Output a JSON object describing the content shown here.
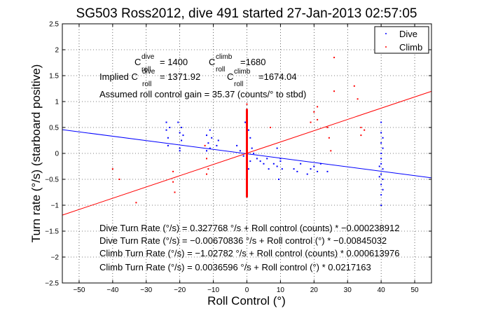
{
  "chart_data": {
    "type": "scatter",
    "title": "SG503 Ross2012, dive 491 started 27-Jan-2013 02:57:05",
    "xlabel": "Roll Control (°)",
    "ylabel": "Turn rate (°/s) (starboard positive)",
    "xlim": [
      -55,
      55
    ],
    "ylim": [
      -2.5,
      2.5
    ],
    "xticks": [
      -50,
      -40,
      -30,
      -20,
      -10,
      0,
      10,
      20,
      30,
      40,
      50
    ],
    "yticks": [
      -2.5,
      -2,
      -1.5,
      -1,
      -0.5,
      0,
      0.5,
      1,
      1.5,
      2,
      2.5
    ],
    "xtick_labels": [
      "−50",
      "−40",
      "−30",
      "−20",
      "−10",
      "0",
      "10",
      "20",
      "30",
      "40",
      "50"
    ],
    "ytick_labels": [
      "−2.5",
      "−2",
      "−1.5",
      "−1",
      "−0.5",
      "0",
      "0.5",
      "1",
      "1.5",
      "2",
      "2.5"
    ],
    "grid": true,
    "legend_position": "top-right",
    "series": [
      {
        "name": "Dive",
        "color": "#0000ff",
        "marker": "dot",
        "points": [
          [
            -24,
            0.6
          ],
          [
            -24,
            0.45
          ],
          [
            -23.5,
            0.3
          ],
          [
            -23,
            0.5
          ],
          [
            -23.5,
            0.15
          ],
          [
            -20.5,
            0.6
          ],
          [
            -20,
            0.4
          ],
          [
            -19.5,
            0.25
          ],
          [
            -20,
            0.1
          ],
          [
            -19.5,
            0.5
          ],
          [
            -20,
            0.05
          ],
          [
            -19,
            0.35
          ],
          [
            -12,
            0.35
          ],
          [
            -11.5,
            0.2
          ],
          [
            -11,
            0.1
          ],
          [
            -12,
            0.05
          ],
          [
            -10.5,
            0.3
          ],
          [
            -11,
            0.45
          ],
          [
            -9,
            0.15
          ],
          [
            -8.5,
            0.25
          ],
          [
            -3,
            0.15
          ],
          [
            -2,
            0.05
          ],
          [
            -1,
            -0.05
          ],
          [
            -0.5,
            0.6
          ],
          [
            0,
            0.85
          ],
          [
            0,
            0.75
          ],
          [
            0.5,
            0.45
          ],
          [
            0,
            -0.1
          ],
          [
            0.5,
            -0.3
          ],
          [
            1,
            0.3
          ],
          [
            1.5,
            0.1
          ],
          [
            2,
            0.0
          ],
          [
            1,
            -0.15
          ],
          [
            3,
            -0.1
          ],
          [
            4,
            -0.15
          ],
          [
            5,
            -0.2
          ],
          [
            6,
            -0.1
          ],
          [
            6.5,
            -0.3
          ],
          [
            8,
            -0.2
          ],
          [
            9,
            -0.25
          ],
          [
            9.5,
            -0.5
          ],
          [
            10,
            -0.15
          ],
          [
            10.5,
            -0.3
          ],
          [
            9,
            0.1
          ],
          [
            10,
            -0.1
          ],
          [
            14,
            -0.3
          ],
          [
            15,
            -0.35
          ],
          [
            16,
            -0.2
          ],
          [
            18,
            -0.4
          ],
          [
            19,
            -0.3
          ],
          [
            20,
            -0.25
          ],
          [
            21,
            -0.35
          ],
          [
            22,
            -0.2
          ],
          [
            24,
            -0.35
          ],
          [
            40,
            -0.2
          ],
          [
            40,
            -0.4
          ],
          [
            40,
            -0.6
          ],
          [
            40,
            -0.8
          ],
          [
            40,
            -1.0
          ],
          [
            40,
            -0.1
          ],
          [
            40,
            0.0
          ],
          [
            40,
            0.2
          ],
          [
            40,
            0.4
          ],
          [
            40,
            0.6
          ],
          [
            40.5,
            -0.3
          ],
          [
            40.5,
            -0.5
          ],
          [
            40.5,
            -0.7
          ],
          [
            40.5,
            0.1
          ],
          [
            40.5,
            0.3
          ],
          [
            39.5,
            -0.45
          ],
          [
            39.5,
            -0.25
          ]
        ]
      },
      {
        "name": "Climb",
        "color": "#ff0000",
        "marker": "dot",
        "points": [
          [
            -40,
            -0.3
          ],
          [
            -38,
            -0.5
          ],
          [
            -33,
            -0.95
          ],
          [
            -22,
            -0.35
          ],
          [
            -22,
            -0.55
          ],
          [
            -21.5,
            -0.75
          ],
          [
            -12,
            -0.1
          ],
          [
            -12,
            -0.4
          ],
          [
            -11.5,
            -0.3
          ],
          [
            -12.5,
            0.15
          ],
          [
            0,
            0.85
          ],
          [
            0,
            0.7
          ],
          [
            0,
            0.55
          ],
          [
            0,
            0.4
          ],
          [
            0,
            0.25
          ],
          [
            0,
            0.1
          ],
          [
            0,
            -0.05
          ],
          [
            0,
            -0.2
          ],
          [
            0,
            -0.35
          ],
          [
            0,
            -0.5
          ],
          [
            0,
            -0.65
          ],
          [
            0,
            -0.8
          ],
          [
            0,
            0.95
          ],
          [
            0,
            -0.15
          ],
          [
            0,
            0.3
          ],
          [
            7,
            0.5
          ],
          [
            19,
            0.6
          ],
          [
            20,
            0.8
          ],
          [
            21,
            0.9
          ],
          [
            21,
            0.65
          ],
          [
            24,
            0.5
          ],
          [
            24.5,
            0.3
          ],
          [
            25,
            0.05
          ],
          [
            26,
            1.85
          ],
          [
            26,
            1.2
          ],
          [
            32,
            1.3
          ],
          [
            33,
            1.05
          ],
          [
            34,
            0.5
          ],
          [
            34,
            0.35
          ],
          [
            35,
            0.45
          ]
        ]
      }
    ],
    "fit_lines": [
      {
        "series": "Dive",
        "color": "#0000ff",
        "intercept": -0.00670836,
        "slope": -0.00845032
      },
      {
        "series": "Climb",
        "color": "#ff0000",
        "intercept": 0.0036596,
        "slope": 0.0217163
      }
    ],
    "annotations": {
      "c_dive_prefix": "C",
      "c_dive_sup": "dive",
      "c_dive_sub": "roll",
      "c_dive_value": "= 1400",
      "c_climb_prefix": "C",
      "c_climb_sup": "climb",
      "c_climb_sub": "roll",
      "c_climb_value": "=1680",
      "implied_label": "Implied C",
      "implied_dive_sup": "dive",
      "implied_dive_sub": "roll",
      "implied_dive_value": "= 1371.92",
      "implied_climb_prefix": "C",
      "implied_climb_sup": "climb",
      "implied_climb_sub": "roll",
      "implied_climb_value": "=1674.04",
      "gain": "Assumed roll control gain = 35.37 (counts/° to stbd)",
      "eq1": "Dive Turn Rate (°/s) = 0.327768 °/s + Roll control (counts) * −0.000238912",
      "eq2": "Dive Turn Rate (°/s) = −0.00670836 °/s + Roll control (°) * −0.00845032",
      "eq3": "Climb Turn Rate (°/s) = −1.02782 °/s + Roll control (counts) * 0.000613976",
      "eq4": "Climb Turn Rate (°/s) = 0.0036596 °/s + Roll control (°) * 0.0217163"
    }
  }
}
